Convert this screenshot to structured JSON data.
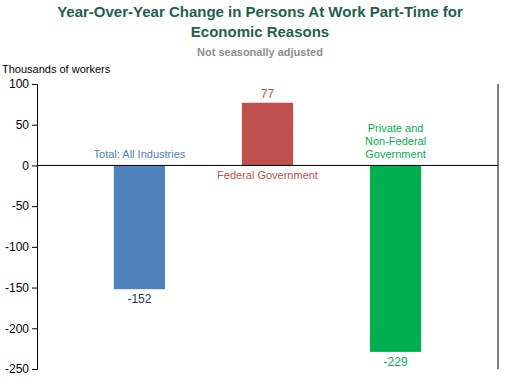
{
  "chart_data": {
    "type": "bar",
    "title": "Year-Over-Year Change in Persons At Work Part-Time for Economic Reasons",
    "subtitle": "Not seasonally adjusted",
    "y_label": "Thousands of workers",
    "categories": [
      "Total: All Industries",
      "Federal Government",
      "Private and Non-Federal Government"
    ],
    "values": [
      -152,
      77,
      -229
    ],
    "colors": [
      "#4F81BD",
      "#C0504D",
      "#00B050"
    ],
    "ylim": [
      -250,
      100
    ],
    "yticks": [
      -250,
      -200,
      -150,
      -100,
      -50,
      0,
      50,
      100
    ],
    "grid": false,
    "data_labels": true,
    "tick_labels": "y"
  }
}
